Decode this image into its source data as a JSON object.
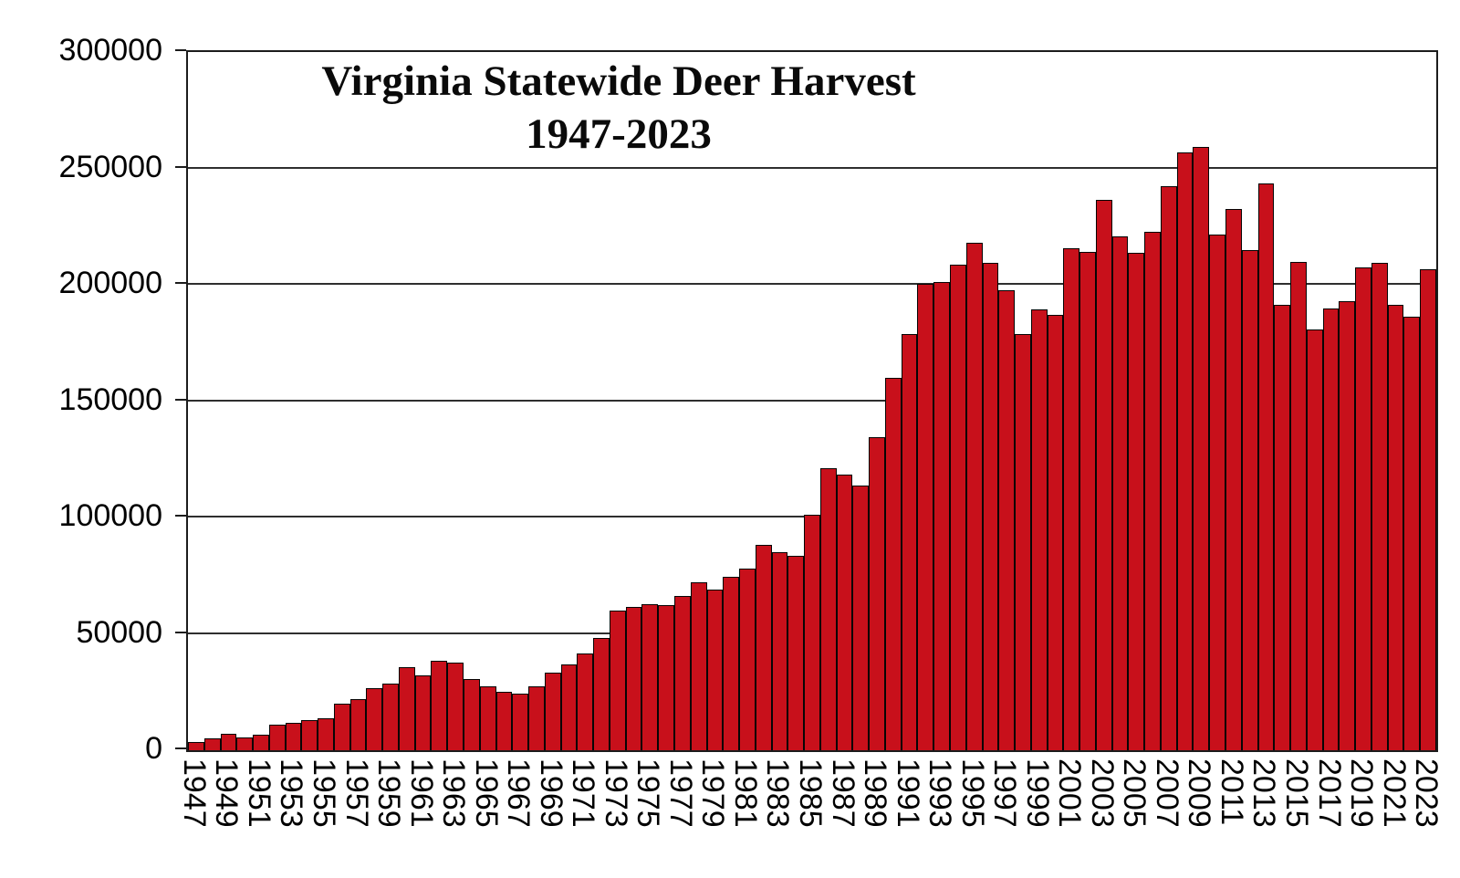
{
  "figure": {
    "title_line1": "Virginia Statewide Deer Harvest",
    "title_line2": "1947-2023"
  },
  "chart_data": {
    "type": "bar",
    "title": "Virginia Statewide Deer Harvest 1947-2023",
    "xlabel": "",
    "ylabel": "",
    "ylim": [
      0,
      300000
    ],
    "yticks": [
      0,
      50000,
      100000,
      150000,
      200000,
      250000,
      300000
    ],
    "grid": "horizontal",
    "legend": "none",
    "x_tick_labels_shown": "odd years only, rotated 90 degrees",
    "bar_color": "#C8101B",
    "bar_border_color": "#050505",
    "categories": [
      1947,
      1948,
      1949,
      1950,
      1951,
      1952,
      1953,
      1954,
      1955,
      1956,
      1957,
      1958,
      1959,
      1960,
      1961,
      1962,
      1963,
      1964,
      1965,
      1966,
      1967,
      1968,
      1969,
      1970,
      1971,
      1972,
      1973,
      1974,
      1975,
      1976,
      1977,
      1978,
      1979,
      1980,
      1981,
      1982,
      1983,
      1984,
      1985,
      1986,
      1987,
      1988,
      1989,
      1990,
      1991,
      1992,
      1993,
      1994,
      1995,
      1996,
      1997,
      1998,
      1999,
      2000,
      2001,
      2002,
      2003,
      2004,
      2005,
      2006,
      2007,
      2008,
      2009,
      2010,
      2011,
      2012,
      2013,
      2014,
      2015,
      2016,
      2017,
      2018,
      2019,
      2020,
      2021,
      2022,
      2023
    ],
    "values": [
      3600,
      5000,
      7100,
      5500,
      6600,
      10800,
      11600,
      12800,
      13700,
      20000,
      21900,
      26500,
      28600,
      35600,
      32000,
      38400,
      37600,
      30700,
      27400,
      25300,
      24400,
      27300,
      33200,
      36800,
      41500,
      48100,
      59900,
      61400,
      62900,
      62400,
      66300,
      72100,
      69200,
      74400,
      78100,
      88100,
      85300,
      83600,
      101200,
      121200,
      118600,
      113600,
      134500,
      160200,
      179000,
      200400,
      201100,
      208800,
      218200,
      209300,
      197800,
      178700,
      189600,
      187100,
      215800,
      214100,
      236600,
      220900,
      213900,
      222600,
      242400,
      256800,
      259400,
      221400,
      232700,
      214800,
      243700,
      191300,
      209900,
      180600,
      190000,
      193000,
      207500,
      209500,
      191500,
      186400,
      206800
    ]
  }
}
